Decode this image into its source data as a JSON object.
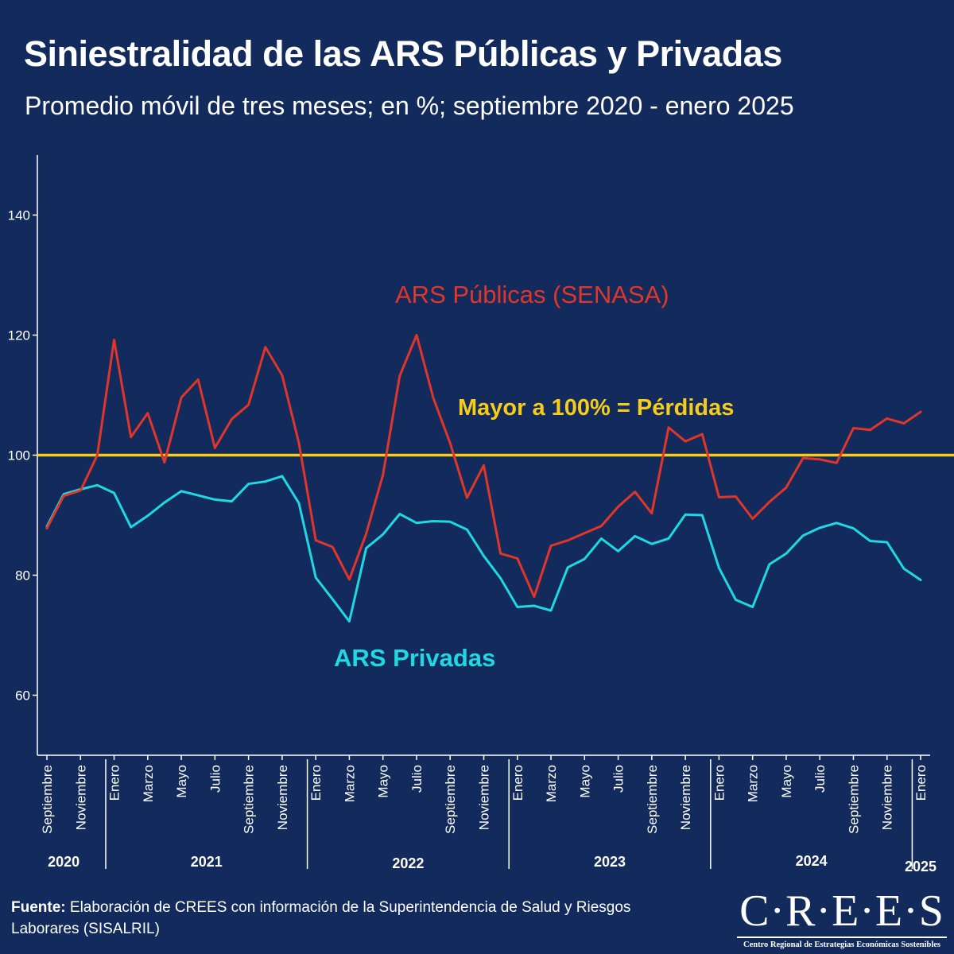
{
  "header": {
    "title": "Siniestralidad de las ARS Públicas y Privadas",
    "subtitle": "Promedio móvil de tres meses; en %; septiembre 2020 - enero 2025"
  },
  "footer": {
    "source_label": "Fuente:",
    "source_text": "Elaboración de CREES con información de la Superintendencia de Salud y Riesgos Laborares (SISALRIL)"
  },
  "logo": {
    "wordmark": "C·R·E·E·S",
    "tagline": "Centro Regional de Estrategias Económicas Sostenibles"
  },
  "colors": {
    "background": "#132a5c",
    "publicas": "#e0362a",
    "privadas": "#1ed8e2",
    "threshold": "#f5cd1a",
    "axis": "#ffffff"
  },
  "chart_data": {
    "type": "line",
    "title": "Siniestralidad de las ARS Públicas y Privadas",
    "ylim": [
      50,
      150
    ],
    "yticks": [
      60,
      80,
      100,
      120,
      140
    ],
    "x_month_labels": [
      "Septiembre",
      "Noviembre",
      "Enero",
      "Marzo",
      "Mayo",
      "Julio",
      "Septiembre",
      "Noviembre",
      "Enero",
      "Marzo",
      "Mayo",
      "Julio",
      "Septiembre",
      "Noviembre",
      "Enero",
      "Marzo",
      "Mayo",
      "Julio",
      "Septiembre",
      "Noviembre",
      "Enero",
      "Marzo",
      "Mayo",
      "Julio",
      "Septiembre",
      "Noviembre",
      "Enero"
    ],
    "years": [
      "2020",
      "2021",
      "2022",
      "2023",
      "2024",
      "2025"
    ],
    "threshold": {
      "value": 100,
      "label": "Mayor a 100% = Pérdidas"
    },
    "series": [
      {
        "name": "ARS Públicas (SENASA)",
        "color": "#e0362a",
        "values": [
          87.8,
          93.2,
          94.1,
          100.0,
          119.2,
          103.0,
          107.0,
          98.8,
          109.6,
          112.6,
          101.2,
          106.0,
          108.4,
          118.0,
          113.3,
          102.0,
          85.8,
          84.7,
          79.3,
          86.9,
          96.7,
          113.2,
          120.0,
          109.5,
          102.0,
          92.9,
          98.3,
          83.6,
          82.8,
          76.4,
          84.9,
          85.8,
          87.0,
          88.2,
          91.4,
          93.9,
          90.3,
          104.6,
          102.3,
          103.5,
          93.0,
          93.1,
          89.4,
          92.2,
          94.6,
          99.5,
          99.3,
          98.7,
          104.5,
          104.2,
          106.1,
          105.3,
          107.2
        ]
      },
      {
        "name": "ARS Privadas",
        "color": "#1ed8e2",
        "values": [
          88.1,
          93.5,
          94.3,
          95.0,
          93.7,
          88.0,
          89.9,
          92.1,
          94.0,
          93.3,
          92.6,
          92.3,
          95.2,
          95.6,
          96.5,
          92.0,
          79.6,
          76.0,
          72.3,
          84.5,
          86.8,
          90.2,
          88.7,
          89.0,
          88.9,
          87.6,
          83.2,
          79.5,
          74.7,
          74.9,
          74.1,
          81.3,
          82.7,
          86.1,
          84.0,
          86.5,
          85.2,
          86.1,
          90.1,
          90.0,
          81.2,
          75.9,
          74.7,
          81.8,
          83.6,
          86.6,
          87.9,
          88.7,
          87.8,
          85.7,
          85.5,
          81.1,
          79.2
        ]
      }
    ]
  }
}
